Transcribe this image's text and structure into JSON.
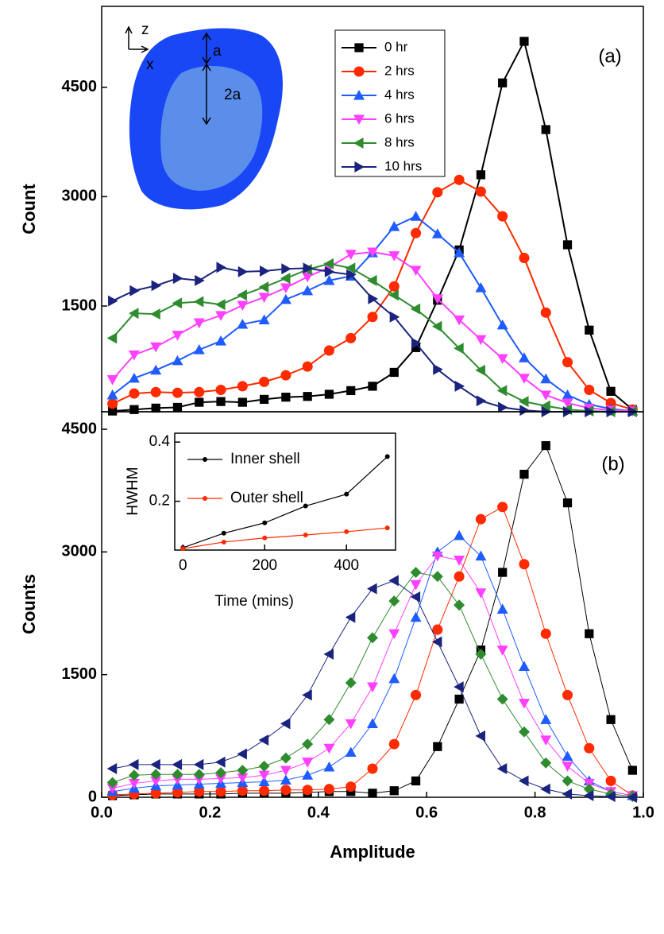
{
  "chart_data": [
    {
      "type": "line",
      "label": "(a)",
      "ylabel": "Count",
      "annotations": [
        "z",
        "x",
        "a",
        "2a"
      ],
      "x": [
        0.02,
        0.06,
        0.1,
        0.14,
        0.18,
        0.22,
        0.26,
        0.3,
        0.34,
        0.38,
        0.42,
        0.46,
        0.5,
        0.54,
        0.58,
        0.62,
        0.66,
        0.7,
        0.74,
        0.78,
        0.82,
        0.86,
        0.9,
        0.94,
        0.98
      ],
      "xlim": [
        0,
        1
      ],
      "ylim": [
        50,
        5610
      ],
      "yticks": [
        1500,
        3000,
        4500
      ],
      "series": [
        {
          "name": "0 hr",
          "color": "#000000",
          "marker": "square",
          "values": [
            60,
            80,
            100,
            110,
            180,
            190,
            180,
            220,
            250,
            260,
            290,
            340,
            400,
            590,
            930,
            1580,
            2270,
            3300,
            4560,
            5130,
            3920,
            2340,
            1170,
            330,
            80
          ]
        },
        {
          "name": "2 hrs",
          "color": "#ff2a00",
          "marker": "circle",
          "values": [
            160,
            300,
            320,
            310,
            320,
            350,
            400,
            460,
            550,
            670,
            890,
            1060,
            1350,
            1770,
            2500,
            3060,
            3230,
            3070,
            2730,
            2160,
            1410,
            730,
            350,
            170,
            80
          ]
        },
        {
          "name": "4 hrs",
          "color": "#1f5cff",
          "marker": "triangle-up",
          "values": [
            280,
            510,
            620,
            750,
            900,
            1020,
            1250,
            1310,
            1590,
            1710,
            1850,
            1910,
            2230,
            2590,
            2730,
            2490,
            2230,
            1750,
            1240,
            790,
            500,
            280,
            150,
            90,
            60
          ]
        },
        {
          "name": "6 hrs",
          "color": "#ff40ff",
          "marker": "triangle-down",
          "values": [
            490,
            830,
            940,
            1100,
            1270,
            1370,
            1510,
            1620,
            1750,
            1900,
            2030,
            2210,
            2240,
            2190,
            1990,
            1600,
            1310,
            1040,
            780,
            510,
            280,
            170,
            100,
            70,
            60
          ]
        },
        {
          "name": "8 hrs",
          "color": "#2e8b2e",
          "marker": "triangle-left",
          "values": [
            1060,
            1400,
            1390,
            1540,
            1560,
            1520,
            1650,
            1760,
            1880,
            2000,
            2080,
            2020,
            1850,
            1650,
            1460,
            1220,
            920,
            620,
            340,
            190,
            130,
            80,
            60,
            50,
            50
          ]
        },
        {
          "name": "10 hrs",
          "color": "#1a237e",
          "marker": "triangle-right",
          "values": [
            1570,
            1710,
            1780,
            1880,
            1850,
            2030,
            1970,
            1980,
            2010,
            2020,
            1970,
            1930,
            1600,
            1350,
            990,
            630,
            400,
            200,
            110,
            70,
            50,
            50,
            50,
            50,
            50
          ]
        }
      ]
    },
    {
      "type": "line",
      "label": "(b)",
      "ylabel": "Counts",
      "xlabel": "Amplitude",
      "x": [
        0.02,
        0.06,
        0.1,
        0.14,
        0.18,
        0.22,
        0.26,
        0.3,
        0.34,
        0.38,
        0.42,
        0.46,
        0.5,
        0.54,
        0.58,
        0.62,
        0.66,
        0.7,
        0.74,
        0.78,
        0.82,
        0.86,
        0.9,
        0.94,
        0.98
      ],
      "xlim": [
        0,
        1
      ],
      "ylim": [
        0,
        4714
      ],
      "xticks": [
        {
          "value": 0,
          "label": "0.0"
        },
        0.2,
        0.4,
        0.6,
        0.8,
        {
          "value": 1,
          "label": "1.0"
        }
      ],
      "yticks": [
        0,
        1500,
        3000,
        4500
      ],
      "series": [
        {
          "color": "#000000",
          "marker": "square",
          "values": [
            20,
            30,
            40,
            40,
            40,
            40,
            50,
            50,
            50,
            60,
            70,
            70,
            50,
            80,
            200,
            620,
            1200,
            1800,
            2750,
            3950,
            4300,
            3600,
            2000,
            950,
            330
          ]
        },
        {
          "color": "#ff2a00",
          "marker": "circle",
          "values": [
            30,
            40,
            50,
            60,
            70,
            70,
            80,
            80,
            90,
            90,
            100,
            130,
            350,
            650,
            1250,
            2050,
            2700,
            3400,
            3550,
            2850,
            2000,
            1250,
            600,
            200,
            20
          ]
        },
        {
          "color": "#1f5cff",
          "marker": "triangle-up",
          "values": [
            70,
            110,
            140,
            150,
            160,
            170,
            180,
            190,
            210,
            270,
            370,
            550,
            900,
            1450,
            2200,
            3000,
            3200,
            2950,
            2300,
            1600,
            950,
            500,
            200,
            70,
            20
          ]
        },
        {
          "color": "#ff40ff",
          "marker": "triangle-down",
          "values": [
            110,
            170,
            200,
            220,
            220,
            230,
            240,
            270,
            330,
            430,
            600,
            900,
            1350,
            2000,
            2600,
            2950,
            2900,
            2500,
            1800,
            1150,
            700,
            380,
            170,
            70,
            20
          ]
        },
        {
          "color": "#2e8b2e",
          "marker": "diamond",
          "values": [
            180,
            270,
            280,
            280,
            280,
            300,
            330,
            380,
            480,
            650,
            950,
            1400,
            1950,
            2400,
            2750,
            2700,
            2350,
            1750,
            1200,
            800,
            420,
            200,
            100,
            40,
            10
          ]
        },
        {
          "color": "#1a237e",
          "marker": "triangle-left",
          "values": [
            350,
            400,
            400,
            400,
            400,
            430,
            530,
            700,
            900,
            1250,
            1750,
            2200,
            2550,
            2650,
            2450,
            1900,
            1350,
            750,
            350,
            200,
            100,
            40,
            20,
            10,
            0
          ]
        }
      ]
    },
    {
      "type": "line",
      "ylabel": "HWHM",
      "xlabel": "Time (mins)",
      "x": [
        0,
        100,
        200,
        300,
        400,
        500
      ],
      "xlim": [
        -20,
        520
      ],
      "ylim": [
        0.035,
        0.43
      ],
      "xticks": [
        0,
        200,
        400
      ],
      "yticks": [
        0.2,
        0.4
      ],
      "series": [
        {
          "name": "Inner shell",
          "color": "#000000",
          "marker": "dot",
          "values": [
            0.043,
            0.092,
            0.127,
            0.184,
            0.224,
            0.351
          ]
        },
        {
          "name": "Outer shell",
          "color": "#ff2a00",
          "marker": "dot",
          "values": [
            0.04,
            0.062,
            0.076,
            0.086,
            0.097,
            0.11
          ]
        }
      ]
    }
  ]
}
